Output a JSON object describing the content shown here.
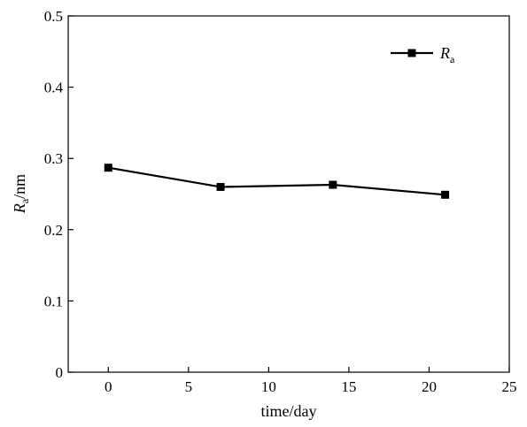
{
  "chart_data": {
    "type": "line",
    "title": "",
    "xlabel": "time/day",
    "ylabel": {
      "main": "R",
      "sub": "a",
      "rest": "/nm"
    },
    "xlim": [
      -2.5,
      25
    ],
    "ylim": [
      0,
      0.5
    ],
    "xticks": [
      0,
      5,
      10,
      15,
      20,
      25
    ],
    "yticks": [
      0,
      0.1,
      0.2,
      0.3,
      0.4,
      0.5
    ],
    "xtick_labels": [
      "0",
      "5",
      "10",
      "15",
      "20",
      "25"
    ],
    "ytick_labels": [
      "0",
      "0.1",
      "0.2",
      "0.3",
      "0.4",
      "0.5"
    ],
    "grid": false,
    "legend_position": "top-right",
    "series": [
      {
        "name": {
          "main": "R",
          "sub": "a"
        },
        "marker": "square",
        "color": "#000000",
        "x": [
          0,
          7,
          14,
          21
        ],
        "y": [
          0.287,
          0.26,
          0.263,
          0.249
        ]
      }
    ]
  }
}
